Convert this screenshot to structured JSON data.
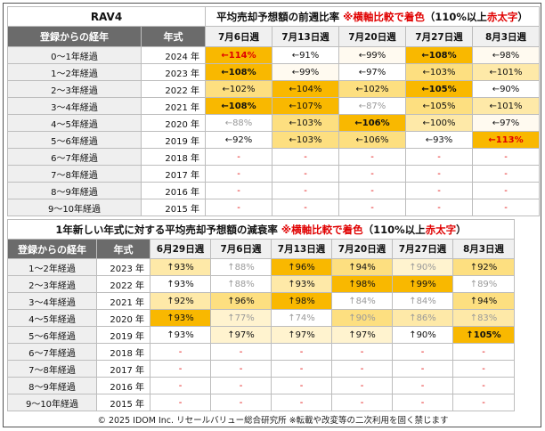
{
  "section1": {
    "label": "RAV4",
    "title_prefix": "平均売却予想額の前週比率",
    "title_note": "※横軸比較で着色",
    "title_cond": "（110%以上",
    "title_red": "赤太字",
    "title_end": "）",
    "header_elapsed": "登録からの経年",
    "header_year": "年式",
    "weeks": [
      "7月6日週",
      "7月13日週",
      "7月20日週",
      "7月27日週",
      "8月3日週"
    ],
    "rows": [
      {
        "elapsed": "0～1年経過",
        "year": "2024 年",
        "cells": [
          {
            "text": "←114%",
            "cls": "v-o hi"
          },
          {
            "text": "←91%",
            "cls": "v-w"
          },
          {
            "text": "←99%",
            "cls": "v-p"
          },
          {
            "text": "←108%",
            "cls": "v-o bold"
          },
          {
            "text": "←98%",
            "cls": "v-p"
          }
        ]
      },
      {
        "elapsed": "1～2年経過",
        "year": "2023 年",
        "cells": [
          {
            "text": "←108%",
            "cls": "v-o bold"
          },
          {
            "text": "←99%",
            "cls": "v-p"
          },
          {
            "text": "←97%",
            "cls": "v-w"
          },
          {
            "text": "←103%",
            "cls": "v-y1"
          },
          {
            "text": "←101%",
            "cls": "v-y2"
          }
        ]
      },
      {
        "elapsed": "2～3年経過",
        "year": "2022 年",
        "cells": [
          {
            "text": "←102%",
            "cls": "v-y1"
          },
          {
            "text": "←104%",
            "cls": "v-o"
          },
          {
            "text": "←102%",
            "cls": "v-y1"
          },
          {
            "text": "←105%",
            "cls": "v-o bold"
          },
          {
            "text": "←90%",
            "cls": "v-w"
          }
        ]
      },
      {
        "elapsed": "3～4年経過",
        "year": "2021 年",
        "cells": [
          {
            "text": "←108%",
            "cls": "v-o bold"
          },
          {
            "text": "←107%",
            "cls": "v-o"
          },
          {
            "text": "←87%",
            "cls": "v-w sub"
          },
          {
            "text": "←105%",
            "cls": "v-y1"
          },
          {
            "text": "←101%",
            "cls": "v-y2"
          }
        ]
      },
      {
        "elapsed": "4～5年経過",
        "year": "2020 年",
        "cells": [
          {
            "text": "←88%",
            "cls": "v-w sub"
          },
          {
            "text": "←103%",
            "cls": "v-y1"
          },
          {
            "text": "←106%",
            "cls": "v-o bold"
          },
          {
            "text": "←100%",
            "cls": "v-y2"
          },
          {
            "text": "←97%",
            "cls": "v-p"
          }
        ]
      },
      {
        "elapsed": "5～6年経過",
        "year": "2019 年",
        "cells": [
          {
            "text": "←92%",
            "cls": "v-w"
          },
          {
            "text": "←103%",
            "cls": "v-y1"
          },
          {
            "text": "←106%",
            "cls": "v-y1"
          },
          {
            "text": "←93%",
            "cls": "v-w"
          },
          {
            "text": "←113%",
            "cls": "v-o hi"
          }
        ]
      },
      {
        "elapsed": "6～7年経過",
        "year": "2018 年",
        "cells": [
          {
            "text": "-",
            "cls": "dash"
          },
          {
            "text": "-",
            "cls": "dash"
          },
          {
            "text": "-",
            "cls": "dash"
          },
          {
            "text": "-",
            "cls": "dash"
          },
          {
            "text": "-",
            "cls": "dash"
          }
        ]
      },
      {
        "elapsed": "7～8年経過",
        "year": "2017 年",
        "cells": [
          {
            "text": "-",
            "cls": "dash"
          },
          {
            "text": "-",
            "cls": "dash"
          },
          {
            "text": "-",
            "cls": "dash"
          },
          {
            "text": "-",
            "cls": "dash"
          },
          {
            "text": "-",
            "cls": "dash"
          }
        ]
      },
      {
        "elapsed": "8～9年経過",
        "year": "2016 年",
        "cells": [
          {
            "text": "-",
            "cls": "dash"
          },
          {
            "text": "-",
            "cls": "dash"
          },
          {
            "text": "-",
            "cls": "dash"
          },
          {
            "text": "-",
            "cls": "dash"
          },
          {
            "text": "-",
            "cls": "dash"
          }
        ]
      },
      {
        "elapsed": "9～10年経過",
        "year": "2015 年",
        "cells": [
          {
            "text": "-",
            "cls": "dash"
          },
          {
            "text": "-",
            "cls": "dash"
          },
          {
            "text": "-",
            "cls": "dash"
          },
          {
            "text": "-",
            "cls": "dash"
          },
          {
            "text": "-",
            "cls": "dash"
          }
        ]
      }
    ]
  },
  "section2": {
    "title_prefix": "1年新しい年式に対する平均売却予想額の減衰率",
    "title_note": "※横軸比較で着色",
    "title_cond": "（110%以上",
    "title_red": "赤太字",
    "title_end": "）",
    "header_elapsed": "登録からの経年",
    "header_year": "年式",
    "weeks": [
      "6月29日週",
      "7月6日週",
      "7月13日週",
      "7月20日週",
      "7月27日週",
      "8月3日週"
    ],
    "rows": [
      {
        "elapsed": "1～2年経過",
        "year": "2023 年",
        "cells": [
          {
            "text": "↑93%",
            "cls": "v-y2"
          },
          {
            "text": "↑88%",
            "cls": "v-w sub"
          },
          {
            "text": "↑96%",
            "cls": "v-o"
          },
          {
            "text": "↑94%",
            "cls": "v-y1"
          },
          {
            "text": "↑90%",
            "cls": "v-y3 sub"
          },
          {
            "text": "↑92%",
            "cls": "v-y1"
          }
        ]
      },
      {
        "elapsed": "2～3年経過",
        "year": "2022 年",
        "cells": [
          {
            "text": "↑93%",
            "cls": "v-w"
          },
          {
            "text": "↑88%",
            "cls": "v-w sub"
          },
          {
            "text": "↑93%",
            "cls": "v-y2"
          },
          {
            "text": "↑98%",
            "cls": "v-o"
          },
          {
            "text": "↑99%",
            "cls": "v-o"
          },
          {
            "text": "↑89%",
            "cls": "v-w sub"
          }
        ]
      },
      {
        "elapsed": "3～4年経過",
        "year": "2021 年",
        "cells": [
          {
            "text": "↑92%",
            "cls": "v-y2"
          },
          {
            "text": "↑96%",
            "cls": "v-y1"
          },
          {
            "text": "↑98%",
            "cls": "v-o"
          },
          {
            "text": "↑84%",
            "cls": "v-w sub"
          },
          {
            "text": "↑84%",
            "cls": "v-w sub"
          },
          {
            "text": "↑94%",
            "cls": "v-y1"
          }
        ]
      },
      {
        "elapsed": "4～5年経過",
        "year": "2020 年",
        "cells": [
          {
            "text": "↑93%",
            "cls": "v-o"
          },
          {
            "text": "↑77%",
            "cls": "v-y3 sub"
          },
          {
            "text": "↑74%",
            "cls": "v-w sub"
          },
          {
            "text": "↑90%",
            "cls": "v-y1 sub"
          },
          {
            "text": "↑86%",
            "cls": "v-y2 sub"
          },
          {
            "text": "↑83%",
            "cls": "v-y2 sub"
          }
        ]
      },
      {
        "elapsed": "5～6年経過",
        "year": "2019 年",
        "cells": [
          {
            "text": "↑93%",
            "cls": "v-w"
          },
          {
            "text": "↑97%",
            "cls": "v-y3"
          },
          {
            "text": "↑97%",
            "cls": "v-y3"
          },
          {
            "text": "↑97%",
            "cls": "v-y3"
          },
          {
            "text": "↑90%",
            "cls": "v-w"
          },
          {
            "text": "↑105%",
            "cls": "v-o bold"
          }
        ]
      },
      {
        "elapsed": "6～7年経過",
        "year": "2018 年",
        "cells": [
          {
            "text": "-",
            "cls": "dash"
          },
          {
            "text": "-",
            "cls": "dash"
          },
          {
            "text": "-",
            "cls": "dash"
          },
          {
            "text": "-",
            "cls": "dash"
          },
          {
            "text": "-",
            "cls": "dash"
          },
          {
            "text": "-",
            "cls": "dash"
          }
        ]
      },
      {
        "elapsed": "7～8年経過",
        "year": "2017 年",
        "cells": [
          {
            "text": "-",
            "cls": "dash"
          },
          {
            "text": "-",
            "cls": "dash"
          },
          {
            "text": "-",
            "cls": "dash"
          },
          {
            "text": "-",
            "cls": "dash"
          },
          {
            "text": "-",
            "cls": "dash"
          },
          {
            "text": "-",
            "cls": "dash"
          }
        ]
      },
      {
        "elapsed": "8～9年経過",
        "year": "2016 年",
        "cells": [
          {
            "text": "-",
            "cls": "dash"
          },
          {
            "text": "-",
            "cls": "dash"
          },
          {
            "text": "-",
            "cls": "dash"
          },
          {
            "text": "-",
            "cls": "dash"
          },
          {
            "text": "-",
            "cls": "dash"
          },
          {
            "text": "-",
            "cls": "dash"
          }
        ]
      },
      {
        "elapsed": "9～10年経過",
        "year": "2015 年",
        "cells": [
          {
            "text": "-",
            "cls": "dash"
          },
          {
            "text": "-",
            "cls": "dash"
          },
          {
            "text": "-",
            "cls": "dash"
          },
          {
            "text": "-",
            "cls": "dash"
          },
          {
            "text": "-",
            "cls": "dash"
          },
          {
            "text": "-",
            "cls": "dash"
          }
        ]
      }
    ]
  },
  "footer": "© 2025 IDOM Inc. リセールバリュー総合研究所 ※転載や改変等の二次利用を固く禁じます"
}
